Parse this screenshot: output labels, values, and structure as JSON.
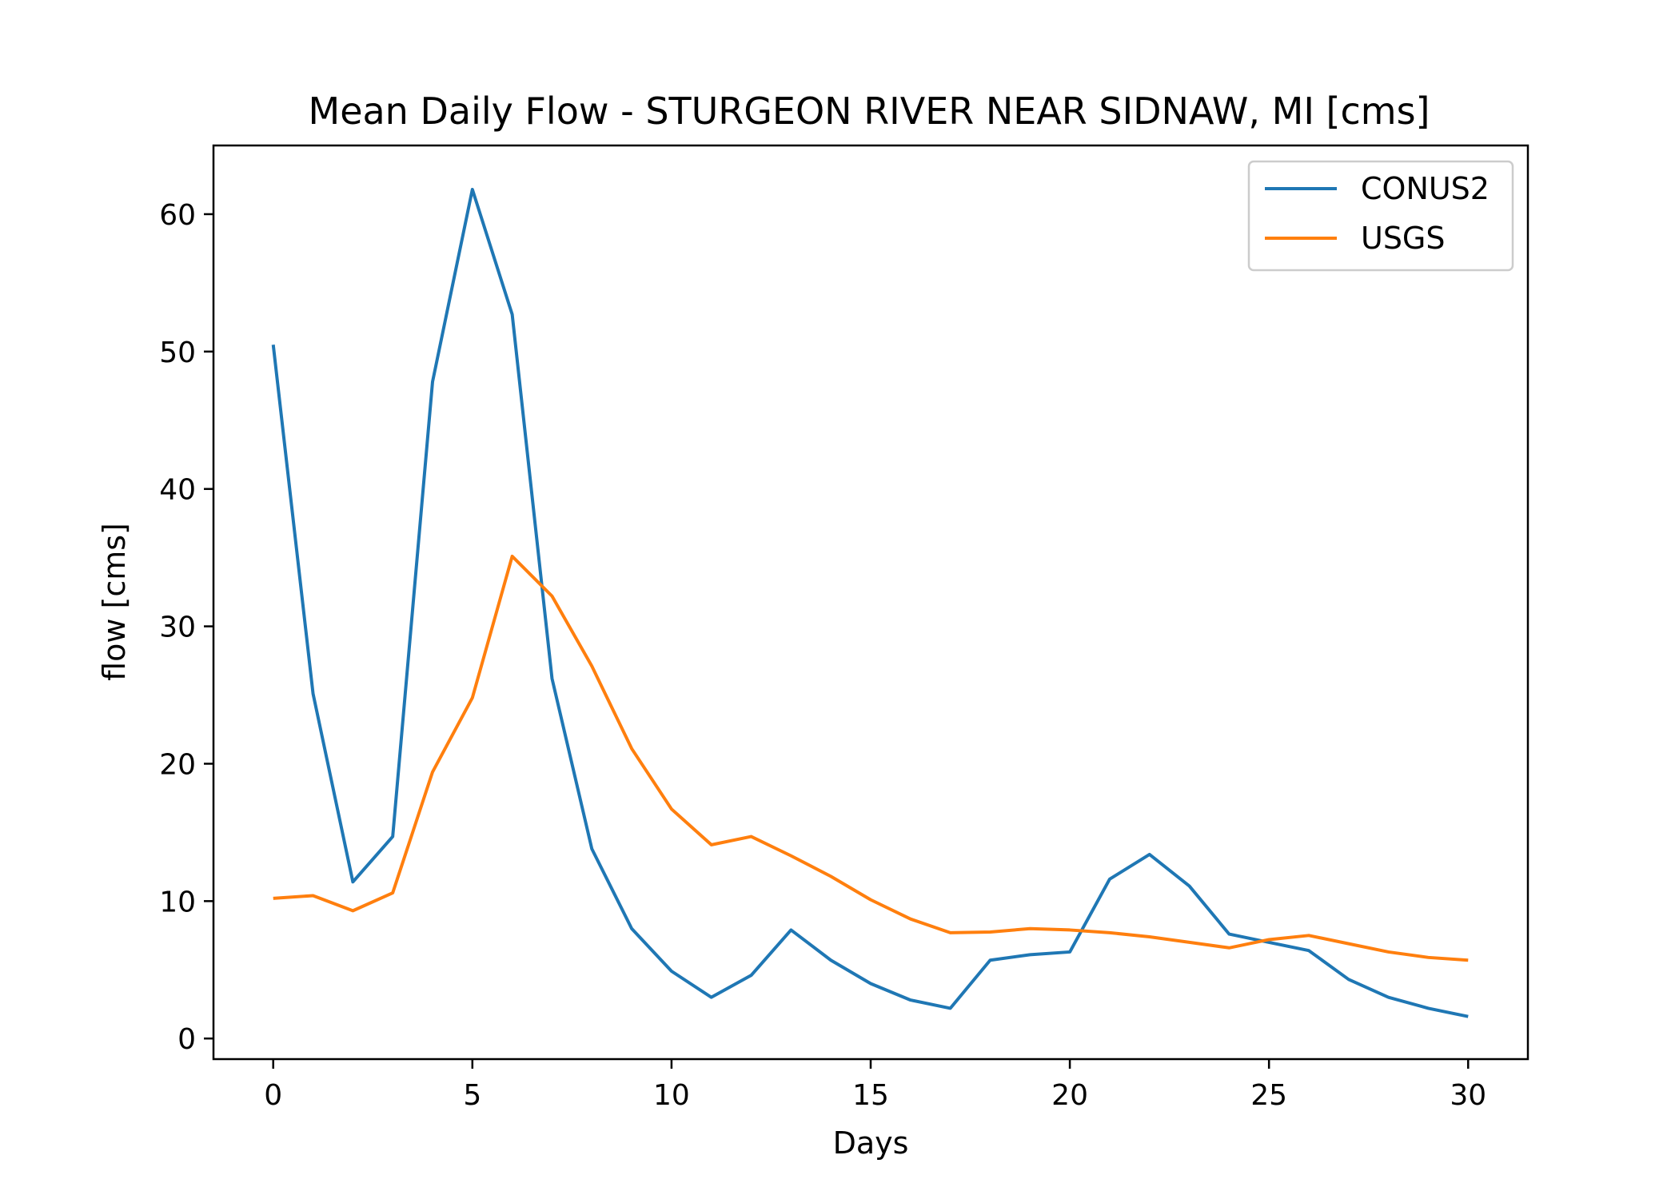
{
  "chart_data": {
    "type": "line",
    "title": "Mean Daily Flow - STURGEON RIVER NEAR SIDNAW, MI [cms]",
    "xlabel": "Days",
    "ylabel": "flow [cms]",
    "xlim": [
      -1.5,
      31.5
    ],
    "ylim": [
      -1.5,
      65
    ],
    "xticks": [
      0,
      5,
      10,
      15,
      20,
      25,
      30
    ],
    "yticks": [
      0,
      10,
      20,
      30,
      40,
      50,
      60
    ],
    "grid": false,
    "legend_position": "top-right",
    "x": [
      0,
      1,
      2,
      3,
      4,
      5,
      6,
      7,
      8,
      9,
      10,
      11,
      12,
      13,
      14,
      15,
      16,
      17,
      18,
      19,
      20,
      21,
      22,
      23,
      24,
      25,
      26,
      27,
      28,
      29,
      30
    ],
    "series": [
      {
        "name": "CONUS2",
        "color": "#1f77b4",
        "values": [
          50.5,
          25.1,
          11.4,
          14.7,
          47.8,
          61.8,
          52.7,
          26.2,
          13.8,
          8.0,
          4.9,
          3.0,
          4.6,
          7.9,
          5.7,
          4.0,
          2.8,
          2.2,
          5.7,
          6.1,
          6.3,
          11.6,
          13.4,
          11.1,
          7.6,
          7.0,
          6.4,
          4.3,
          3.0,
          2.2,
          1.6
        ]
      },
      {
        "name": "USGS",
        "color": "#ff7f0e",
        "values": [
          10.2,
          10.4,
          9.3,
          10.6,
          19.4,
          24.8,
          35.1,
          32.2,
          27.1,
          21.1,
          16.7,
          14.1,
          14.7,
          13.3,
          11.8,
          10.1,
          8.7,
          7.7,
          7.75,
          8.0,
          7.9,
          7.7,
          7.4,
          7.0,
          6.6,
          7.2,
          7.5,
          6.9,
          6.3,
          5.9,
          5.7
        ]
      }
    ]
  }
}
